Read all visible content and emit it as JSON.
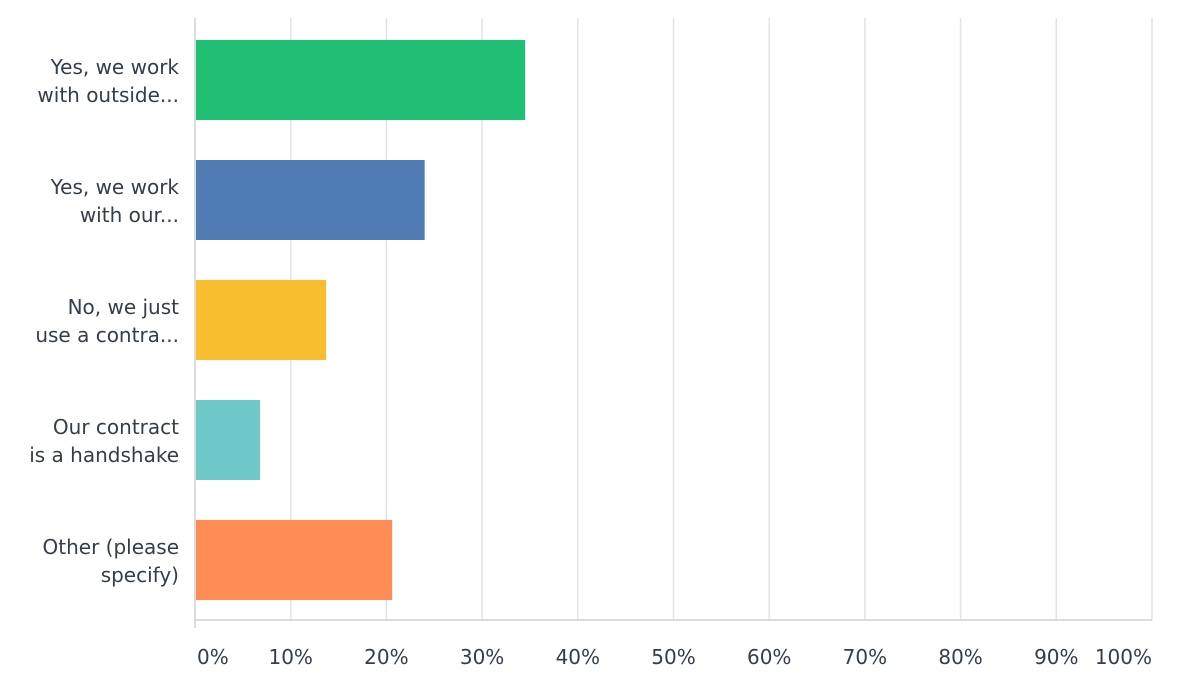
{
  "chart_data": {
    "type": "bar",
    "orientation": "horizontal",
    "categories": [
      [
        "Yes, we work",
        "with outside..."
      ],
      [
        "Yes, we work",
        "with our..."
      ],
      [
        "No, we just",
        "use a contra..."
      ],
      [
        "Our contract",
        "is a handshake"
      ],
      [
        "Other (please",
        "specify)"
      ]
    ],
    "values": [
      34.5,
      24.0,
      13.7,
      6.8,
      20.6
    ],
    "colors": [
      "#21bf73",
      "#507cb6",
      "#f8be2f",
      "#6fc8ca",
      "#ff8b55"
    ],
    "xlim": [
      0,
      100
    ],
    "ticks": [
      0,
      10,
      20,
      30,
      40,
      50,
      60,
      70,
      80,
      90,
      100
    ],
    "tick_labels": [
      "0%",
      "10%",
      "20%",
      "30%",
      "40%",
      "50%",
      "60%",
      "70%",
      "80%",
      "90%",
      "100%"
    ],
    "grid": true,
    "legend": "none"
  }
}
